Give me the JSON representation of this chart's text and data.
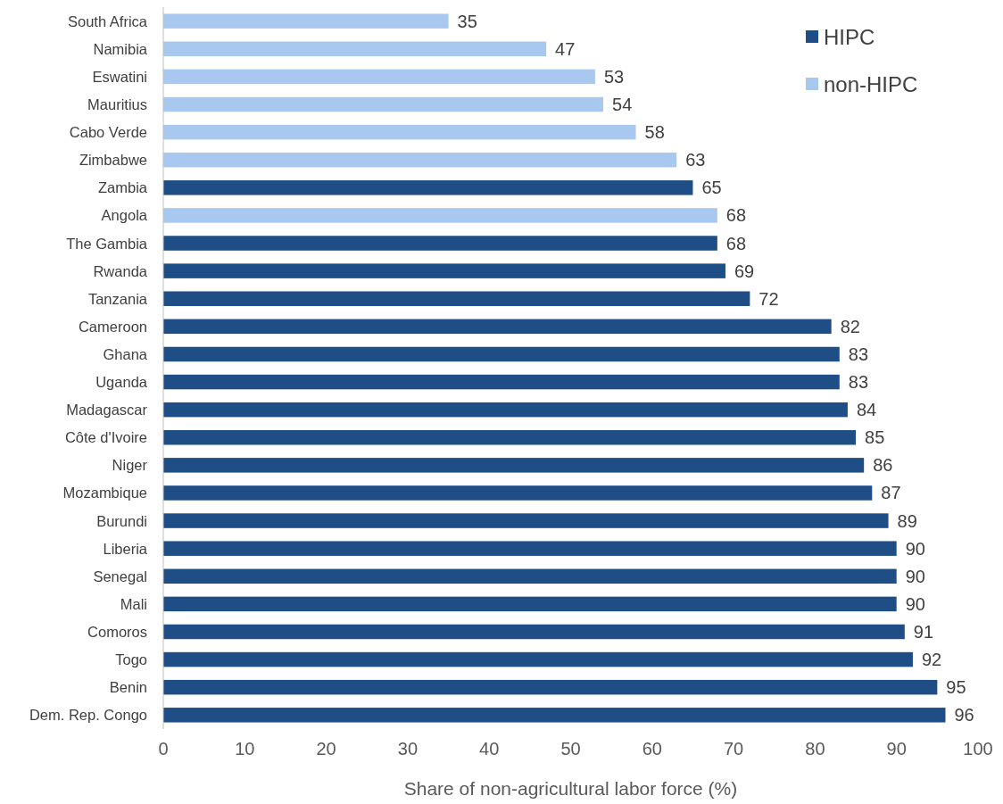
{
  "chart_data": {
    "type": "bar",
    "orientation": "horizontal",
    "stacked": true,
    "xlabel": "Share of non-agricultural labor force (%)",
    "categories": [
      "South Africa",
      "Namibia",
      "Eswatini",
      "Mauritius",
      "Cabo Verde",
      "Zimbabwe",
      "Zambia",
      "Angola",
      "The Gambia",
      "Rwanda",
      "Tanzania",
      "Cameroon",
      "Ghana",
      "Uganda",
      "Madagascar",
      "Côte d'Ivoire",
      "Niger",
      "Mozambique",
      "Burundi",
      "Liberia",
      "Senegal",
      "Mali",
      "Comoros",
      "Togo",
      "Benin",
      "Dem. Rep. Congo"
    ],
    "series": [
      {
        "name": "HIPC",
        "color": "#1f4e87",
        "values": [
          null,
          null,
          null,
          null,
          null,
          null,
          65,
          null,
          68,
          69,
          72,
          82,
          83,
          83,
          84,
          85,
          86,
          87,
          89,
          90,
          90,
          90,
          91,
          92,
          95,
          96
        ]
      },
      {
        "name": "non-HIPC",
        "color": "#a9c8f0",
        "values": [
          35,
          47,
          53,
          54,
          58,
          63,
          null,
          68,
          null,
          null,
          null,
          null,
          null,
          null,
          null,
          null,
          null,
          null,
          null,
          null,
          null,
          null,
          null,
          null,
          null,
          null
        ]
      }
    ],
    "xlim": [
      0,
      100
    ],
    "xticks": [
      0,
      10,
      20,
      30,
      40,
      50,
      60,
      70,
      80,
      90,
      100
    ],
    "data_labels": true,
    "legend": "top right",
    "grid": false
  }
}
